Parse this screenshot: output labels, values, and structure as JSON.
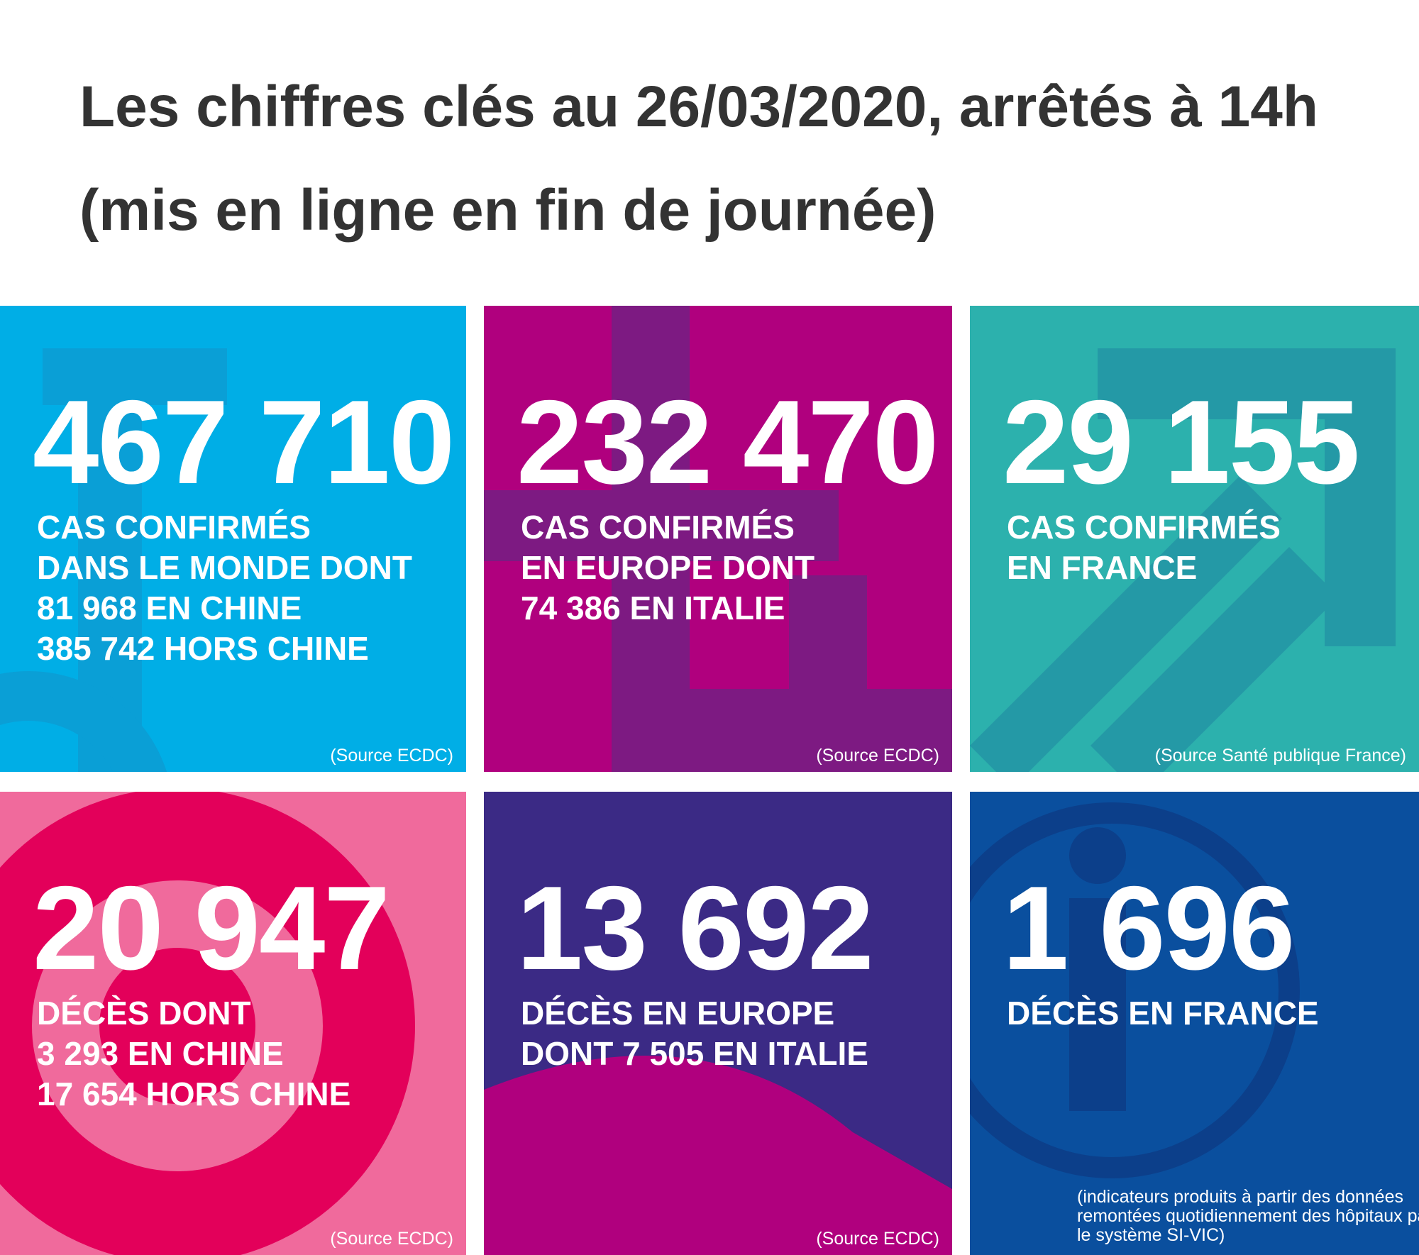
{
  "header": {
    "title": "Les chiffres clés au 26/03/2020, arrêtés à 14h (mis en ligne en fin de journée)"
  },
  "tiles": [
    {
      "number": "467 710",
      "lines": [
        "CAS CONFIRMÉS",
        "DANS LE MONDE DONT",
        "81 968 EN CHINE",
        "385 742 HORS CHINE"
      ],
      "source": "(Source ECDC)"
    },
    {
      "number": "232 470",
      "lines": [
        "CAS CONFIRMÉS",
        "EN EUROPE DONT",
        "74 386 EN ITALIE"
      ],
      "source": "(Source ECDC)"
    },
    {
      "number": "29 155",
      "lines": [
        "CAS CONFIRMÉS",
        "EN FRANCE"
      ],
      "source": "(Source Santé publique France)"
    },
    {
      "number": "20 947",
      "lines": [
        "DÉCÈS DONT",
        "3 293 EN CHINE",
        "17 654 HORS CHINE"
      ],
      "source": "(Source ECDC)"
    },
    {
      "number": "13 692",
      "lines": [
        "DÉCÈS EN EUROPE",
        "DONT 7 505 EN ITALIE"
      ],
      "source": "(Source ECDC)"
    },
    {
      "number": "1 696",
      "lines": [
        "DÉCÈS EN FRANCE"
      ],
      "note": "(indicateurs produits à partir des données remontées quotidiennement des hôpitaux par le système SI-VIC)"
    }
  ]
}
